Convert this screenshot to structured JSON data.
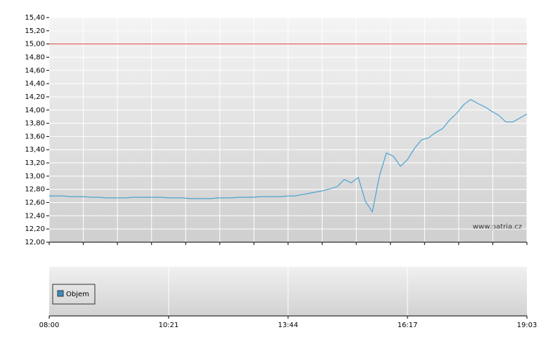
{
  "chart_data": {
    "type": "line",
    "x_labels": [
      "08:00",
      "10:21",
      "13:44",
      "16:17",
      "19:03"
    ],
    "series": [
      {
        "color": "#4aa3cf",
        "values": [
          12.7,
          12.7,
          12.7,
          12.69,
          12.69,
          12.69,
          12.68,
          12.68,
          12.67,
          12.67,
          12.67,
          12.67,
          12.68,
          12.68,
          12.68,
          12.68,
          12.68,
          12.67,
          12.67,
          12.67,
          12.66,
          12.66,
          12.66,
          12.66,
          12.67,
          12.67,
          12.67,
          12.68,
          12.68,
          12.68,
          12.69,
          12.69,
          12.69,
          12.69,
          12.7,
          12.7,
          12.72,
          12.74,
          12.76,
          12.78,
          12.81,
          12.84,
          12.95,
          12.9,
          12.98,
          12.62,
          12.46,
          13.0,
          13.35,
          13.3,
          13.15,
          13.25,
          13.42,
          13.55,
          13.58,
          13.66,
          13.72,
          13.85,
          13.95,
          14.08,
          14.16,
          14.1,
          14.05,
          13.98,
          13.92,
          13.82,
          13.82,
          13.88,
          13.94
        ]
      }
    ],
    "ref_line": {
      "value": 15,
      "color": "#e04040"
    },
    "ylim": [
      12,
      15.4
    ],
    "yticks": [
      {
        "value": 12,
        "label": "12,00"
      },
      {
        "value": 12.2,
        "label": "12,20"
      },
      {
        "value": 12.4,
        "label": "12,40"
      },
      {
        "value": 12.6,
        "label": "12,60"
      },
      {
        "value": 12.8,
        "label": "12,80"
      },
      {
        "value": 13,
        "label": "13,00"
      },
      {
        "value": 13.2,
        "label": "13,20"
      },
      {
        "value": 13.4,
        "label": "13,40"
      },
      {
        "value": 13.6,
        "label": "13,60"
      },
      {
        "value": 13.8,
        "label": "13,80"
      },
      {
        "value": 14,
        "label": "14,00"
      },
      {
        "value": 14.2,
        "label": "14,20"
      },
      {
        "value": 14.4,
        "label": "14,40"
      },
      {
        "value": 14.6,
        "label": "14,60"
      },
      {
        "value": 14.8,
        "label": "14,80"
      },
      {
        "value": 15,
        "label": "15,00"
      },
      {
        "value": 15.2,
        "label": "15,20"
      },
      {
        "value": 15.4,
        "label": "15,40"
      }
    ],
    "grid": true,
    "watermark": "www.patria.cz",
    "volume_legend": {
      "label": "Objem",
      "color": "#3a8fc6"
    }
  }
}
